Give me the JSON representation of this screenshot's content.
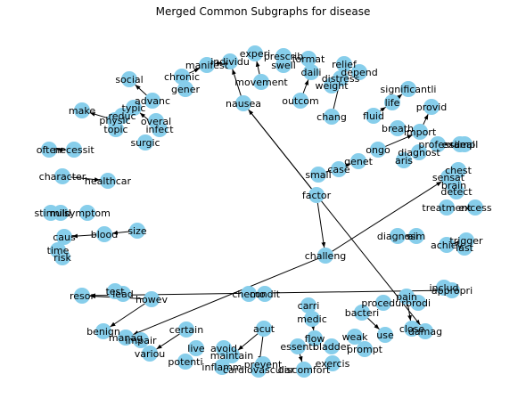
{
  "title": "Merged Common Subgraphs for disease",
  "colors": {
    "node": "#87ceeb",
    "edge": "#000000",
    "label": "#000000"
  },
  "nodes": [
    {
      "id": "experi",
      "label": "experi"
    },
    {
      "id": "prescrib",
      "label": "prescrib"
    },
    {
      "id": "format",
      "label": "format"
    },
    {
      "id": "relief",
      "label": "relief"
    },
    {
      "id": "swell",
      "label": "swell"
    },
    {
      "id": "individu",
      "label": "individu"
    },
    {
      "id": "manifest",
      "label": "manifest"
    },
    {
      "id": "daili",
      "label": "daili"
    },
    {
      "id": "depend",
      "label": "depend"
    },
    {
      "id": "distress",
      "label": "distress"
    },
    {
      "id": "weight",
      "label": "weight"
    },
    {
      "id": "movement",
      "label": "movement"
    },
    {
      "id": "chronic",
      "label": "chronic"
    },
    {
      "id": "gener",
      "label": "gener"
    },
    {
      "id": "social",
      "label": "social"
    },
    {
      "id": "advanc",
      "label": "advanc"
    },
    {
      "id": "typic",
      "label": "typic"
    },
    {
      "id": "make",
      "label": "make"
    },
    {
      "id": "reduc",
      "label": "reduc"
    },
    {
      "id": "physic",
      "label": "physic"
    },
    {
      "id": "overal",
      "label": "overal"
    },
    {
      "id": "topic",
      "label": "topic"
    },
    {
      "id": "infect",
      "label": "infect"
    },
    {
      "id": "surgic",
      "label": "surgic"
    },
    {
      "id": "nausea",
      "label": "nausea"
    },
    {
      "id": "outcom",
      "label": "outcom"
    },
    {
      "id": "chang",
      "label": "chang"
    },
    {
      "id": "significantli",
      "label": "significantli"
    },
    {
      "id": "life",
      "label": "life"
    },
    {
      "id": "fluid",
      "label": "fluid"
    },
    {
      "id": "provid",
      "label": "provid"
    },
    {
      "id": "breath",
      "label": "breath"
    },
    {
      "id": "import",
      "label": "import"
    },
    {
      "id": "profession",
      "label": "professi"
    },
    {
      "id": "deal",
      "label": "deal"
    },
    {
      "id": "exampl",
      "label": "exampl"
    },
    {
      "id": "ongo",
      "label": "ongo"
    },
    {
      "id": "diagnost",
      "label": "diagnost"
    },
    {
      "id": "aris",
      "label": "aris"
    },
    {
      "id": "genet",
      "label": "genet"
    },
    {
      "id": "case",
      "label": "case"
    },
    {
      "id": "small",
      "label": "small"
    },
    {
      "id": "necessit",
      "label": "necessit"
    },
    {
      "id": "often",
      "label": "often"
    },
    {
      "id": "chest",
      "label": "chest"
    },
    {
      "id": "sensat",
      "label": "sensat"
    },
    {
      "id": "brain",
      "label": "brain"
    },
    {
      "id": "detect",
      "label": "detect"
    },
    {
      "id": "character",
      "label": "character"
    },
    {
      "id": "healthcar",
      "label": "healthcar"
    },
    {
      "id": "factor",
      "label": "factor"
    },
    {
      "id": "treatment",
      "label": "treatment"
    },
    {
      "id": "excess",
      "label": "excess"
    },
    {
      "id": "stimuli",
      "label": "stimuli"
    },
    {
      "id": "mild",
      "label": "mild"
    },
    {
      "id": "symptom",
      "label": "symptom"
    },
    {
      "id": "size",
      "label": "size"
    },
    {
      "id": "blood",
      "label": "blood"
    },
    {
      "id": "caus",
      "label": "caus"
    },
    {
      "id": "time",
      "label": "time"
    },
    {
      "id": "risk",
      "label": "risk"
    },
    {
      "id": "diagnosi",
      "label": "diagnosi"
    },
    {
      "id": "aim",
      "label": "aim"
    },
    {
      "id": "achiev",
      "label": "achiev"
    },
    {
      "id": "trigger",
      "label": "trigger"
    },
    {
      "id": "last",
      "label": "last"
    },
    {
      "id": "challeng",
      "label": "challeng"
    },
    {
      "id": "includ",
      "label": "includ"
    },
    {
      "id": "appropri",
      "label": "appropri"
    },
    {
      "id": "test",
      "label": "test"
    },
    {
      "id": "lead",
      "label": "lead"
    },
    {
      "id": "resor",
      "label": "resor"
    },
    {
      "id": "howev",
      "label": "howev"
    },
    {
      "id": "chemo",
      "label": "chemo"
    },
    {
      "id": "condit",
      "label": "condit"
    },
    {
      "id": "pain",
      "label": "pain"
    },
    {
      "id": "procedur",
      "label": "procedur"
    },
    {
      "id": "brodi",
      "label": "brodi"
    },
    {
      "id": "carri",
      "label": "carri"
    },
    {
      "id": "medic",
      "label": "medic"
    },
    {
      "id": "bacteri",
      "label": "bacteri"
    },
    {
      "id": "benign",
      "label": "benign"
    },
    {
      "id": "manag",
      "label": "manag"
    },
    {
      "id": "impair",
      "label": "impair"
    },
    {
      "id": "certain",
      "label": "certain"
    },
    {
      "id": "variou",
      "label": "variou"
    },
    {
      "id": "acut",
      "label": "acut"
    },
    {
      "id": "flow",
      "label": "flow"
    },
    {
      "id": "weak",
      "label": "weak"
    },
    {
      "id": "use",
      "label": "use"
    },
    {
      "id": "close",
      "label": "close"
    },
    {
      "id": "damag",
      "label": "damag"
    },
    {
      "id": "live",
      "label": "live"
    },
    {
      "id": "avoid",
      "label": "avoid"
    },
    {
      "id": "maintain",
      "label": "maintain"
    },
    {
      "id": "essenti",
      "label": "essenti"
    },
    {
      "id": "bladder",
      "label": "bladder"
    },
    {
      "id": "prompt",
      "label": "prompt"
    },
    {
      "id": "potenti",
      "label": "potenti"
    },
    {
      "id": "inflamm",
      "label": "inflamm"
    },
    {
      "id": "prevent",
      "label": "prevent"
    },
    {
      "id": "cardiovascular",
      "label": "cardiovascular"
    },
    {
      "id": "discomfort",
      "label": "discomfort"
    },
    {
      "id": "exercis",
      "label": "exercis"
    }
  ],
  "edges": [
    [
      "movement",
      "experi"
    ],
    [
      "nausea",
      "individu"
    ],
    [
      "manifest",
      "individu"
    ],
    [
      "chronic",
      "manifest"
    ],
    [
      "outcom",
      "daili"
    ],
    [
      "chang",
      "relief"
    ],
    [
      "advanc",
      "social"
    ],
    [
      "physic",
      "make"
    ],
    [
      "infect",
      "typic"
    ],
    [
      "fluid",
      "life"
    ],
    [
      "life",
      "significantli"
    ],
    [
      "import",
      "provid"
    ],
    [
      "ongo",
      "import"
    ],
    [
      "small",
      "genet"
    ],
    [
      "necessit",
      "often"
    ],
    [
      "character",
      "healthcar"
    ],
    [
      "profession",
      "deal"
    ],
    [
      "brain",
      "chest"
    ],
    [
      "aim",
      "diagnosi"
    ],
    [
      "trigger",
      "achiev"
    ],
    [
      "mild",
      "stimuli"
    ],
    [
      "blood",
      "caus"
    ],
    [
      "size",
      "blood"
    ],
    [
      "howev",
      "benign"
    ],
    [
      "howev",
      "resor"
    ],
    [
      "appropri",
      "resor"
    ],
    [
      "factor",
      "nausea"
    ],
    [
      "factor",
      "challeng"
    ],
    [
      "challeng",
      "manag"
    ],
    [
      "challeng",
      "sensat"
    ],
    [
      "nausea",
      "damag"
    ],
    [
      "bacteri",
      "use"
    ],
    [
      "pain",
      "close"
    ],
    [
      "carri",
      "medic"
    ],
    [
      "medic",
      "flow"
    ],
    [
      "essenti",
      "discomfort"
    ],
    [
      "acut",
      "cardiovascular"
    ],
    [
      "certain",
      "variou"
    ],
    [
      "acut",
      "maintain"
    ]
  ]
}
